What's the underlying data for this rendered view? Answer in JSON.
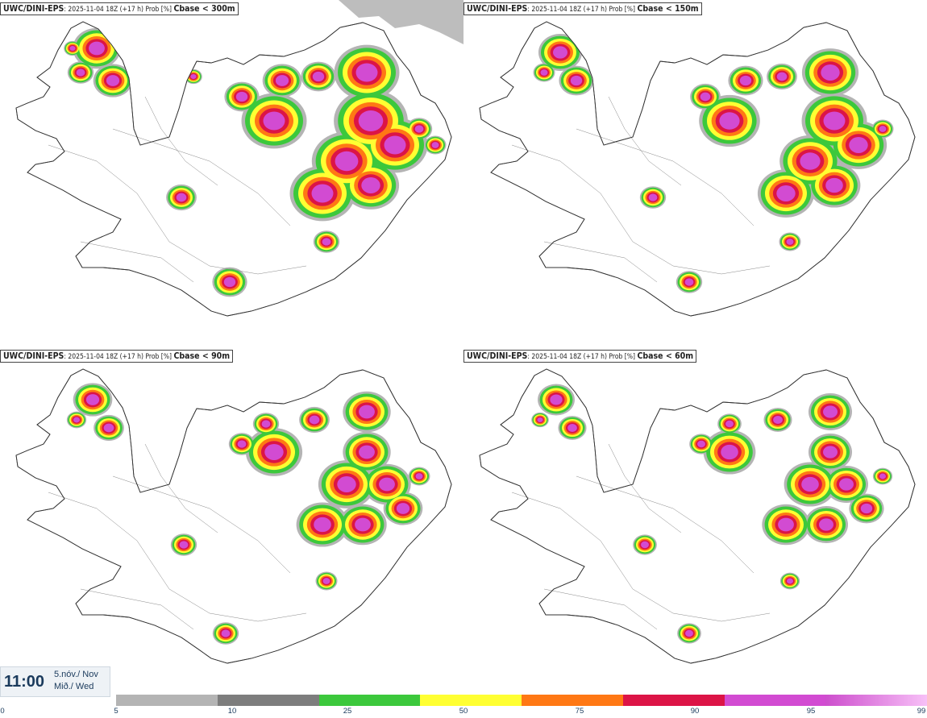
{
  "panels": [
    {
      "model": "UWC/DINI-EPS",
      "run": ": 2025-11-04 18Z (+17 h) Prob [%] ",
      "threshold": "Cbase < 300m"
    },
    {
      "model": "UWC/DINI-EPS",
      "run": ": 2025-11-04 18Z (+17 h) Prob [%] ",
      "threshold": "Cbase < 150m"
    },
    {
      "model": "UWC/DINI-EPS",
      "run": ": 2025-11-04 18Z (+17 h) Prob [%] ",
      "threshold": "Cbase < 90m"
    },
    {
      "model": "UWC/DINI-EPS",
      "run": ": 2025-11-04 18Z (+17 h) Prob [%] ",
      "threshold": "Cbase < 60m"
    }
  ],
  "time": {
    "hour": "11:00",
    "date_line1": "5.nóv./ Nov",
    "date_line2": "Mið./ Wed"
  },
  "colorbar": {
    "ticks": [
      "0",
      "5",
      "10",
      "25",
      "50",
      "75",
      "90",
      "95",
      "99"
    ],
    "colors": [
      "#ffffff",
      "#b4b4b4",
      "#7d7d7d",
      "#3cc83c",
      "#ffff32",
      "#ff7814",
      "#dc1446",
      "#d24bd2",
      "#f5a5f5"
    ]
  }
}
